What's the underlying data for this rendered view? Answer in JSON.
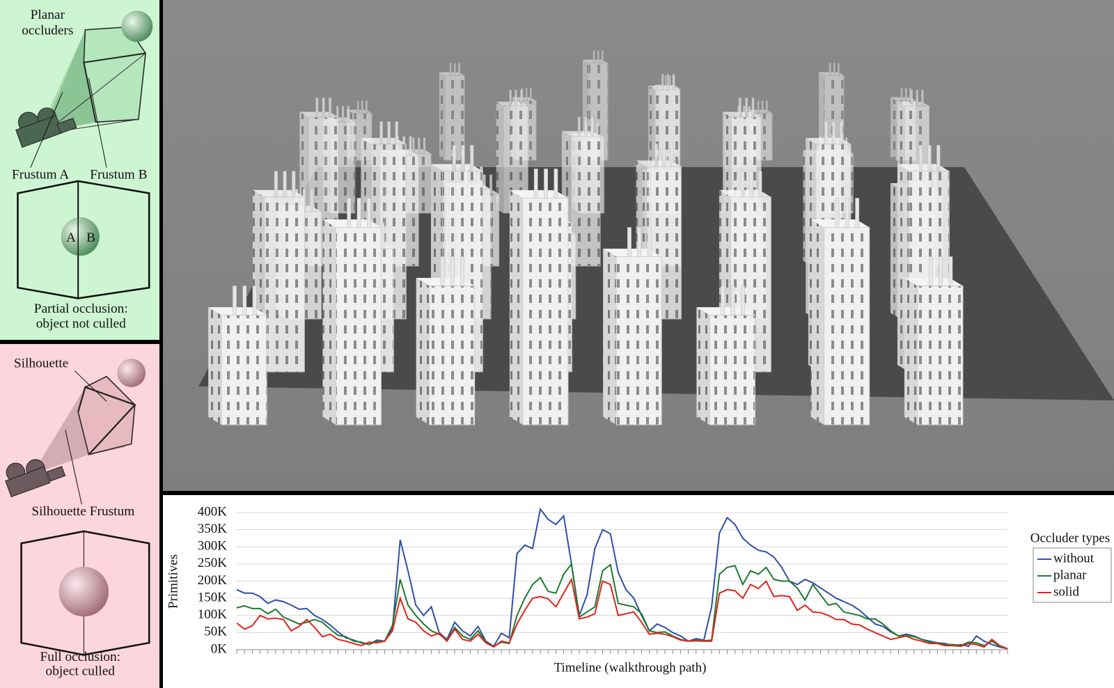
{
  "panels": [
    {
      "callouts": [
        "Planar",
        "occluders",
        "Frustum A",
        "Frustum B"
      ],
      "sphere_labels": [
        "A",
        "B"
      ],
      "caption": [
        "Partial occlusion:",
        "object not culled"
      ]
    },
    {
      "callouts": [
        "Silhouette",
        "Silhouette Frustum"
      ],
      "caption": [
        "Full occlusion:",
        "object culled"
      ]
    }
  ],
  "chart_data": {
    "type": "line",
    "xlabel": "Timeline (walkthrough path)",
    "ylabel": "Primitives",
    "categories": [
      null,
      null,
      null,
      null,
      null,
      null,
      null,
      null,
      null,
      null,
      null,
      null,
      null,
      null,
      null,
      null,
      null,
      null,
      null,
      null,
      null,
      null,
      null,
      null,
      null,
      null,
      null,
      null,
      null,
      null,
      null,
      null,
      null,
      null,
      null,
      null,
      null,
      null,
      null,
      null,
      null,
      null,
      null,
      null,
      null,
      null,
      null,
      null,
      null,
      null,
      null,
      null,
      null,
      null,
      null,
      null,
      null,
      null,
      null,
      null,
      null,
      null,
      null,
      null,
      null,
      null,
      null,
      null,
      null,
      null,
      null,
      null,
      null,
      null,
      null,
      null,
      null,
      null,
      null,
      null,
      null,
      null,
      null,
      null,
      null,
      null,
      null,
      null,
      null,
      null,
      null,
      null,
      null,
      null,
      null,
      null,
      null,
      null,
      null,
      null
    ],
    "series": [
      {
        "name": "without",
        "color": "#2f4fa8",
        "values": [
          175000,
          165000,
          165000,
          155000,
          135000,
          145000,
          140000,
          130000,
          118000,
          120000,
          100000,
          88000,
          72000,
          52000,
          35000,
          28000,
          20000,
          15000,
          28000,
          25000,
          60000,
          320000,
          230000,
          130000,
          100000,
          125000,
          50000,
          30000,
          80000,
          55000,
          40000,
          68000,
          25000,
          10000,
          48000,
          35000,
          280000,
          305000,
          295000,
          410000,
          380000,
          365000,
          390000,
          250000,
          100000,
          160000,
          295000,
          350000,
          338000,
          225000,
          175000,
          150000,
          100000,
          55000,
          75000,
          65000,
          50000,
          40000,
          25000,
          32000,
          28000,
          125000,
          340000,
          385000,
          365000,
          325000,
          305000,
          290000,
          285000,
          270000,
          240000,
          200000,
          190000,
          205000,
          195000,
          180000,
          165000,
          150000,
          140000,
          130000,
          115000,
          95000,
          75000,
          68000,
          52000,
          40000,
          45000,
          40000,
          30000,
          25000,
          20000,
          18000,
          12000,
          15000,
          10000,
          40000,
          25000,
          15000,
          8000,
          3000
        ]
      },
      {
        "name": "planar",
        "color": "#1e7a2e",
        "values": [
          122000,
          128000,
          120000,
          120000,
          105000,
          118000,
          95000,
          85000,
          75000,
          80000,
          88000,
          80000,
          60000,
          42000,
          38000,
          25000,
          22000,
          15000,
          25000,
          25000,
          70000,
          205000,
          130000,
          100000,
          75000,
          55000,
          45000,
          28000,
          65000,
          40000,
          30000,
          55000,
          22000,
          10000,
          22000,
          18000,
          100000,
          150000,
          190000,
          210000,
          170000,
          165000,
          220000,
          250000,
          95000,
          110000,
          125000,
          230000,
          248000,
          135000,
          130000,
          125000,
          105000,
          55000,
          50000,
          52000,
          40000,
          30000,
          25000,
          28000,
          26000,
          28000,
          220000,
          240000,
          245000,
          190000,
          230000,
          220000,
          240000,
          205000,
          200000,
          200000,
          180000,
          145000,
          190000,
          160000,
          130000,
          135000,
          110000,
          105000,
          100000,
          90000,
          90000,
          75000,
          55000,
          40000,
          42000,
          38000,
          30000,
          22000,
          20000,
          15000,
          15000,
          12000,
          22000,
          20000,
          12000,
          25000,
          10000,
          3000
        ]
      },
      {
        "name": "solid",
        "color": "#e0231c",
        "values": [
          78000,
          60000,
          70000,
          100000,
          90000,
          92000,
          88000,
          55000,
          68000,
          88000,
          65000,
          38000,
          45000,
          30000,
          25000,
          18000,
          12000,
          22000,
          20000,
          25000,
          55000,
          150000,
          90000,
          80000,
          55000,
          40000,
          48000,
          25000,
          60000,
          30000,
          25000,
          45000,
          20000,
          8000,
          25000,
          20000,
          75000,
          115000,
          150000,
          155000,
          148000,
          125000,
          165000,
          205000,
          90000,
          95000,
          105000,
          200000,
          190000,
          100000,
          105000,
          110000,
          80000,
          45000,
          48000,
          45000,
          38000,
          28000,
          25000,
          26000,
          25000,
          25000,
          165000,
          175000,
          172000,
          150000,
          190000,
          178000,
          200000,
          155000,
          158000,
          155000,
          115000,
          130000,
          110000,
          108000,
          100000,
          88000,
          88000,
          75000,
          72000,
          60000,
          50000,
          40000,
          30000,
          35000,
          40000,
          30000,
          25000,
          18000,
          18000,
          12000,
          12000,
          10000,
          18000,
          15000,
          8000,
          30000,
          12000,
          3000
        ]
      }
    ],
    "ylim": [
      0,
      400000
    ],
    "yticks": [
      {
        "value": 0,
        "label": "0K"
      },
      {
        "value": 50000,
        "label": "50K"
      },
      {
        "value": 100000,
        "label": "100K"
      },
      {
        "value": 150000,
        "label": "150K"
      },
      {
        "value": 200000,
        "label": "200K"
      },
      {
        "value": 250000,
        "label": "250K"
      },
      {
        "value": 300000,
        "label": "300K"
      },
      {
        "value": 350000,
        "label": "350K"
      },
      {
        "value": 400000,
        "label": "400K"
      }
    ],
    "grid": true,
    "legend": "right",
    "legend_title": "Occluder types"
  }
}
